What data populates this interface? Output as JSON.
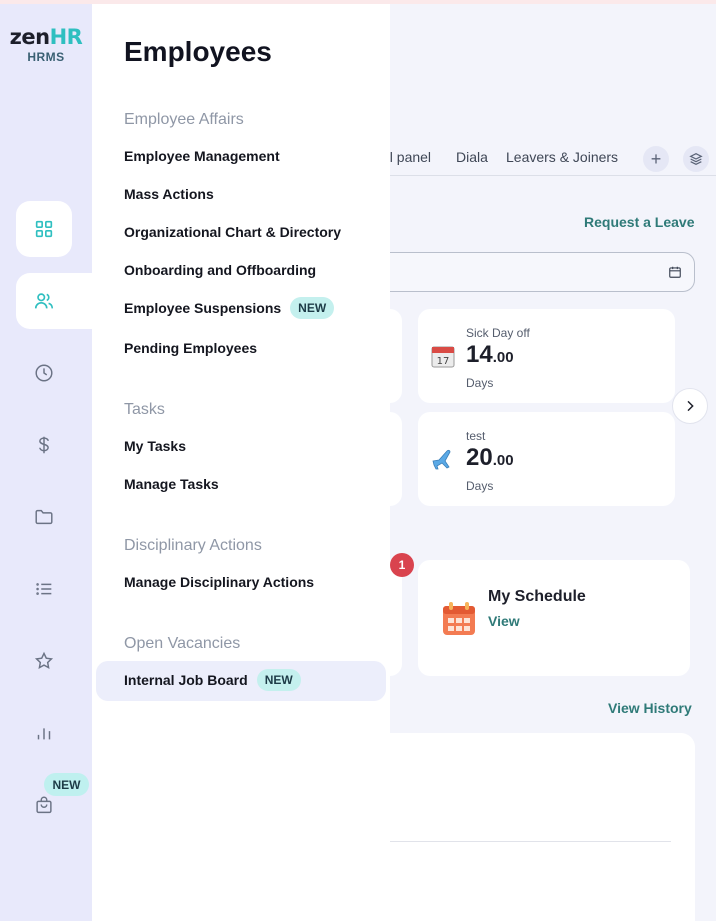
{
  "logo": {
    "brand_a": "zen",
    "brand_b": "HR",
    "sub": "HRMS"
  },
  "rail": {
    "icons": [
      "dashboard-icon",
      "people-icon",
      "clock-icon",
      "dollar-icon",
      "folder-icon",
      "list-icon",
      "star-icon",
      "bar-chart-icon",
      "bag-icon"
    ],
    "new_badge": "NEW"
  },
  "flyout": {
    "title": "Employees",
    "sections": [
      {
        "label": "Employee Affairs",
        "items": [
          {
            "label": "Employee Management"
          },
          {
            "label": "Mass Actions"
          },
          {
            "label": "Organizational Chart & Directory"
          },
          {
            "label": "Onboarding and Offboarding"
          },
          {
            "label": "Employee Suspensions",
            "badge": "NEW"
          },
          {
            "label": "Pending Employees"
          }
        ]
      },
      {
        "label": "Tasks",
        "items": [
          {
            "label": "My Tasks"
          },
          {
            "label": "Manage Tasks"
          }
        ]
      },
      {
        "label": "Disciplinary Actions",
        "items": [
          {
            "label": "Manage Disciplinary Actions"
          }
        ]
      },
      {
        "label": "Open Vacancies",
        "items": [
          {
            "label": "Internal Job Board",
            "badge": "NEW"
          }
        ]
      }
    ]
  },
  "main": {
    "tabs": [
      "ol panel",
      "Diala",
      "Leavers & Joiners"
    ],
    "tab_add": "+",
    "request_leave": "Request a Leave",
    "leave_cards": [
      {
        "title": "Sick Day off",
        "value_int": "14",
        "value_dec": ".00",
        "unit": "Days",
        "icon": "calendar-icon"
      },
      {
        "title": "test",
        "value_int": "20",
        "value_dec": ".00",
        "unit": "Days",
        "icon": "airplane-icon"
      }
    ],
    "notification_count": "1",
    "schedule": {
      "title": "My Schedule",
      "link": "View",
      "icon": "schedule-icon"
    },
    "view_history": "View History",
    "colors": {
      "accent": "#2f7a78",
      "rail_bg": "#e8e9fb",
      "badge_bg": "#c4f0ee",
      "alert": "#d9434e"
    }
  }
}
